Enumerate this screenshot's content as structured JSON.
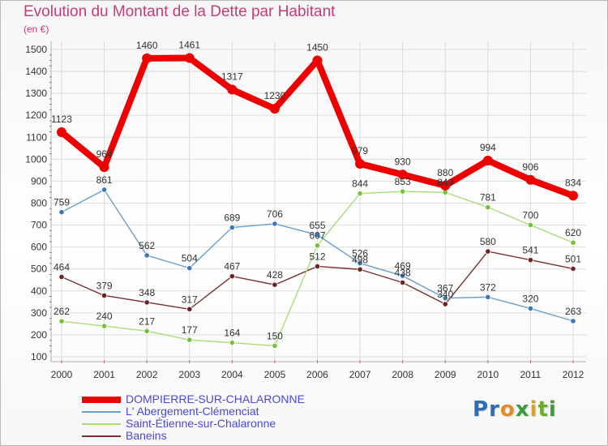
{
  "header": {
    "title": "Evolution du Montant de la Dette par Habitant",
    "unit": "(en €)"
  },
  "logo": {
    "letters": [
      "P",
      "r",
      "o",
      "x",
      "i",
      "t",
      "i"
    ],
    "colors": [
      "#2e6db5",
      "#2e6db5",
      "#e38b2a",
      "#3d9a3d",
      "#d6a42a",
      "#6bab2e",
      "#3d9a3d"
    ]
  },
  "chart_data": {
    "type": "line",
    "title": "Evolution du Montant de la Dette par Habitant",
    "ylabel": "(en €)",
    "x": [
      "2000",
      "2001",
      "2002",
      "2003",
      "2004",
      "2005",
      "2006",
      "2007",
      "2008",
      "2009",
      "2010",
      "2011",
      "2012"
    ],
    "ylim": [
      100,
      1500
    ],
    "yticks": [
      100,
      200,
      300,
      400,
      500,
      600,
      700,
      800,
      900,
      1000,
      1100,
      1200,
      1300,
      1400,
      1500
    ],
    "grid": true,
    "legend_position": "bottom-left",
    "series": [
      {
        "name": "DOMPIERRE-SUR-CHALARONNE",
        "color": "#ee0000",
        "dot": "#ee0000",
        "thick": true,
        "values": [
          1123,
          964,
          1460,
          1461,
          1317,
          1230,
          1450,
          979,
          930,
          880,
          994,
          906,
          834
        ],
        "labels": [
          "1123",
          "964",
          "1460",
          "1461",
          "1317",
          "1230",
          "1450",
          "979",
          "930",
          "880",
          "994",
          "906",
          "834"
        ]
      },
      {
        "name": "L' Abergement-Clémenciat",
        "color": "#6a9fc8",
        "dot": "#3a78b8",
        "values": [
          759,
          861,
          562,
          504,
          689,
          706,
          655,
          526,
          469,
          367,
          372,
          320,
          263
        ],
        "labels": [
          "759",
          "861",
          "562",
          "504",
          "689",
          "706",
          "655",
          "526",
          "469",
          "367",
          "372",
          "320",
          "263"
        ]
      },
      {
        "name": "Saint-Étienne-sur-Chalaronne",
        "color": "#a8dc7a",
        "dot": "#78c03a",
        "values": [
          262,
          240,
          217,
          177,
          164,
          150,
          607,
          844,
          853,
          849,
          781,
          700,
          620
        ],
        "labels": [
          "262",
          "240",
          "217",
          "177",
          "164",
          "150",
          "607",
          "844",
          "853",
          "849",
          "781",
          "700",
          "620"
        ]
      },
      {
        "name": "Baneins",
        "color": "#7a3030",
        "dot": "#6b2424",
        "values": [
          464,
          379,
          348,
          317,
          467,
          428,
          512,
          498,
          438,
          340,
          580,
          541,
          501
        ],
        "labels": [
          "464",
          "379",
          "348",
          "317",
          "467",
          "428",
          "512",
          "498",
          "438",
          "340",
          "580",
          "541",
          "501"
        ]
      }
    ]
  }
}
